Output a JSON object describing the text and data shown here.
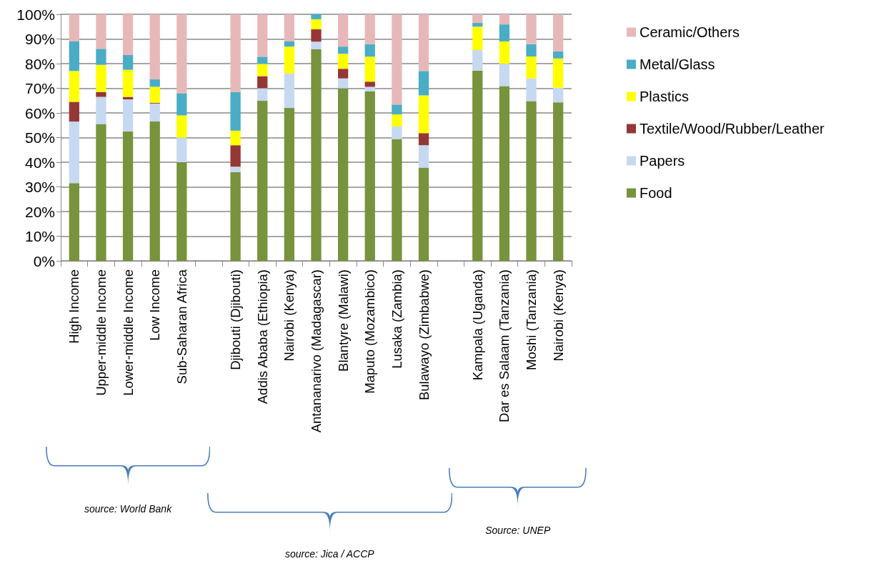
{
  "chart_data": {
    "type": "bar",
    "stacked": true,
    "categories": [
      "High Income",
      "Upper-middle Income",
      "Lower-middle Income",
      "Low Income",
      "Sub-Saharan Africa",
      null,
      "Djibouti (Djibouti)",
      "Addis Ababa (Ethiopia)",
      "Nairobi (Kenya)",
      "Antananarivo (Madagascar)",
      "Blantyre (Malawi)",
      "Maputo (Mozambico)",
      "Lusaka (Zambia)",
      "Bulawayo (Zimbabwe)",
      null,
      "Kampala (Uganda)",
      "Dar es Salaam (Tanzania)",
      "Moshi (Tanzania)",
      "Nairobi (Kenya)"
    ],
    "series": [
      {
        "name": "Food",
        "color": "#77933c",
        "values": [
          31.5,
          55.5,
          52.5,
          56.5,
          40,
          null,
          36,
          64.9,
          62,
          85.8,
          70,
          68.7,
          49.4,
          37.8,
          null,
          77.2,
          70.9,
          64.8,
          64.3
        ]
      },
      {
        "name": "Papers",
        "color": "#c6d9f1",
        "values": [
          25,
          11,
          13,
          7.3,
          10,
          null,
          2.2,
          5.1,
          14,
          3.1,
          4,
          1.9,
          5.1,
          9.1,
          null,
          8.3,
          9,
          9.2,
          5.9
        ]
      },
      {
        "name": "Textile/Wood/Rubber/Leather",
        "color": "#953735",
        "values": [
          8,
          2,
          1,
          0.3,
          0,
          null,
          8.7,
          4.9,
          0,
          5,
          3.9,
          2.1,
          0,
          4.9,
          null,
          0,
          0,
          0,
          0
        ]
      },
      {
        "name": "Plastics",
        "color": "#ffff00",
        "values": [
          12.5,
          11,
          11,
          6.5,
          9,
          null,
          5.9,
          5,
          10.9,
          4.1,
          6.1,
          10.1,
          4.9,
          15.3,
          null,
          9.5,
          9.1,
          8.9,
          11.9
        ]
      },
      {
        "name": "Metal/Glass",
        "color": "#4bacc6",
        "values": [
          12,
          6.5,
          6,
          3,
          9,
          null,
          15.7,
          2.9,
          2.1,
          2,
          2.9,
          5.1,
          4,
          9.9,
          null,
          1.5,
          6.9,
          5,
          2.9
        ]
      },
      {
        "name": "Ceramic/Others",
        "color": "#e6b9b8",
        "values": [
          11,
          14,
          16.5,
          26.4,
          32,
          null,
          31.5,
          17.2,
          11,
          0,
          13.1,
          12.1,
          36.6,
          23,
          null,
          3.5,
          4.1,
          12.1,
          15
        ]
      }
    ],
    "ylim": [
      0,
      100
    ],
    "yticks": [
      {
        "value": 0,
        "label": "0%"
      },
      {
        "value": 10,
        "label": "10%"
      },
      {
        "value": 20,
        "label": "20%"
      },
      {
        "value": 30,
        "label": "30%"
      },
      {
        "value": 40,
        "label": "40%"
      },
      {
        "value": 50,
        "label": "50%"
      },
      {
        "value": 60,
        "label": "60%"
      },
      {
        "value": 70,
        "label": "70%"
      },
      {
        "value": 80,
        "label": "80%"
      },
      {
        "value": 90,
        "label": "90%"
      },
      {
        "value": 100,
        "label": "100%"
      }
    ],
    "grid": "y",
    "legend": "right",
    "annotations": [
      "source: World Bank",
      "source: Jica / ACCP",
      "Source: UNEP"
    ]
  }
}
